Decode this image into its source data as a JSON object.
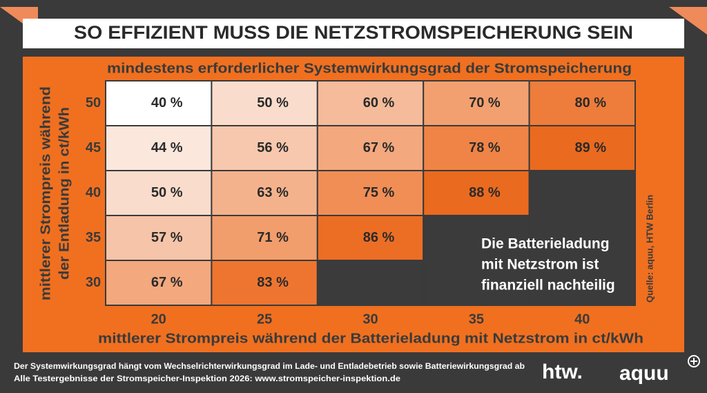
{
  "title": "SO EFFIZIENT MUSS DIE NETZSTROMSPEICHERUNG SEIN",
  "column_header": "mindestens erforderlicher Systemwirkungsgrad der Stromspeicherung",
  "y_axis_label": [
    "mittlerer Strompreis während",
    "der Entladung in ct/kWh"
  ],
  "x_axis_label": "mittlerer Strompreis während der Batterieladung mit Netzstrom in ct/kWh",
  "columns": [
    "20",
    "25",
    "30",
    "35",
    "40"
  ],
  "rows": [
    {
      "label": "50",
      "cells": [
        "40 %",
        "50 %",
        "60 %",
        "70 %",
        "80 %"
      ],
      "colors": [
        "#ffffff",
        "#fadccc",
        "#f5bb9a",
        "#f2a070",
        "#ee7c3a"
      ]
    },
    {
      "label": "45",
      "cells": [
        "44 %",
        "56 %",
        "67 %",
        "78 %",
        "89 %"
      ],
      "colors": [
        "#fce7dd",
        "#f7c8ad",
        "#f3a87e",
        "#ef8446",
        "#ea6a1f"
      ]
    },
    {
      "label": "40",
      "cells": [
        "50 %",
        "63 %",
        "75 %",
        "88 %",
        null
      ],
      "colors": [
        "#fadccc",
        "#f4b28c",
        "#f08e55",
        "#ea6a1f",
        "#3b3b3b"
      ]
    },
    {
      "label": "35",
      "cells": [
        "57 %",
        "71 %",
        "86 %",
        null,
        null
      ],
      "colors": [
        "#f6c4a8",
        "#f29d6c",
        "#ec6e25",
        "#3b3b3b",
        "#3b3b3b"
      ]
    },
    {
      "label": "30",
      "cells": [
        "67 %",
        "83 %",
        null,
        null,
        null
      ],
      "colors": [
        "#f3a87e",
        "#ee7530",
        "#3b3b3b",
        "#3b3b3b",
        "#3b3b3b"
      ]
    }
  ],
  "note": [
    "Die Batterieladung",
    "mit Netzstrom ist",
    "finanziell nachteilig"
  ],
  "source": "Quelle: aquu, HTW Berlin",
  "footer": [
    "Der Systemwirkungsgrad hängt vom Wechselrichterwirkungsgrad im Lade- und Entladebetrieb sowie Batteriewirkungsgrad ab",
    "Alle Testergebnisse der Stromspeicher-Inspektion 2026: www.stromspeicher-inspektion.de"
  ],
  "logos": [
    "htw.",
    "aquu"
  ]
}
